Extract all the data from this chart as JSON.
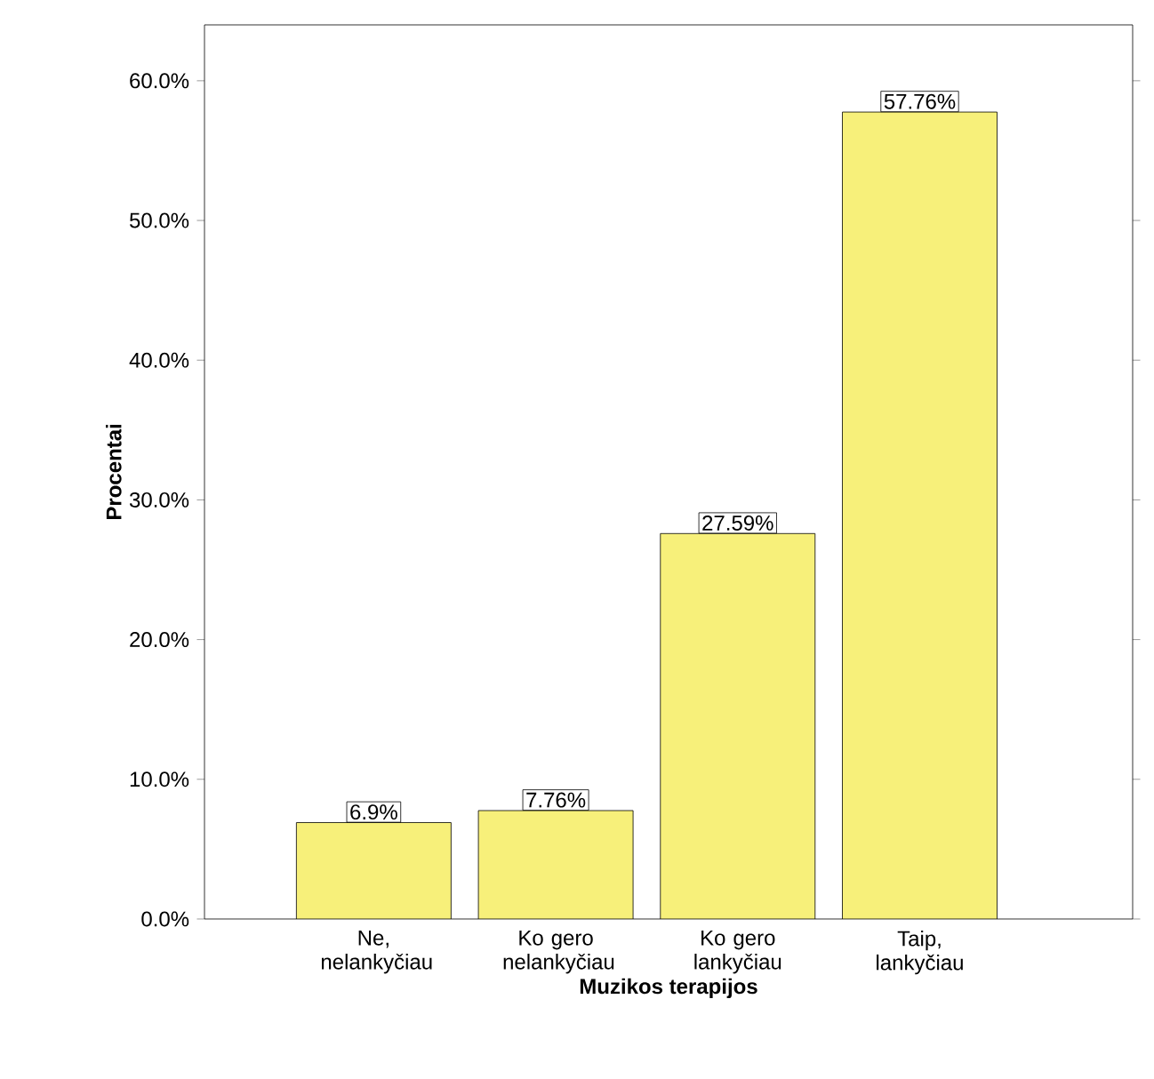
{
  "chart_data": {
    "type": "bar",
    "xlabel": "Muzikos terapijos",
    "ylabel": "Procentai",
    "categories": [
      "Ne, nelankyčiau",
      "Ko gero nelankyčiau",
      "Ko gero lankyčiau",
      "Taip, lankyčiau"
    ],
    "values": [
      6.9,
      7.76,
      27.59,
      57.76
    ],
    "value_labels": [
      "6.9%",
      "7.76%",
      "27.59%",
      "57.76%"
    ],
    "color": "#f7f07a",
    "ylim": [
      0,
      64
    ],
    "yticks": [
      {
        "value": 0,
        "label": "0.0%"
      },
      {
        "value": 10,
        "label": "10.0%"
      },
      {
        "value": 20,
        "label": "20.0%"
      },
      {
        "value": 30,
        "label": "30.0%"
      },
      {
        "value": 40,
        "label": "40.0%"
      },
      {
        "value": 50,
        "label": "50.0%"
      },
      {
        "value": 60,
        "label": "60.0%"
      }
    ],
    "grid": false
  }
}
